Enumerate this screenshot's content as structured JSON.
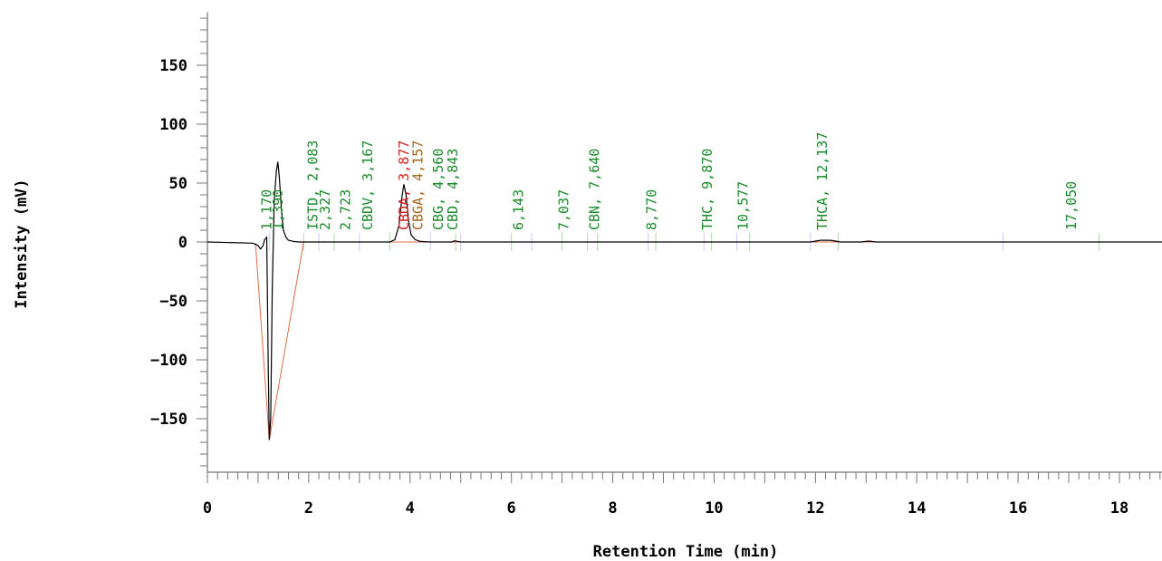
{
  "chart_data": {
    "type": "line",
    "title": "",
    "xlabel": "Retention Time (min)",
    "ylabel": "Intensity (mV)",
    "xlim": [
      0,
      18.9
    ],
    "ylim": [
      -195,
      195
    ],
    "x_ticks": [
      0,
      2,
      4,
      6,
      8,
      10,
      12,
      14,
      16,
      18
    ],
    "y_ticks": [
      150,
      100,
      50,
      0,
      -50,
      -100,
      -150
    ],
    "grid": false,
    "colors": {
      "signal": "#000000",
      "baseline": "#e06a4c",
      "label_green": "#1a8a2a",
      "label_red": "#d62020",
      "label_brown": "#a86418"
    },
    "signal": {
      "x": [
        0,
        0.9,
        1.0,
        1.05,
        1.1,
        1.13,
        1.17,
        1.2,
        1.22,
        1.25,
        1.28,
        1.32,
        1.36,
        1.39,
        1.42,
        1.46,
        1.5,
        1.55,
        1.6,
        1.7,
        1.8,
        2.0,
        3.0,
        3.6,
        3.7,
        3.78,
        3.84,
        3.877,
        3.92,
        3.97,
        4.02,
        4.1,
        4.2,
        4.4,
        4.83,
        4.87,
        5.0,
        11.9,
        12.1,
        12.3,
        12.5,
        12.9,
        13.05,
        13.2,
        18.9
      ],
      "y": [
        0,
        -1,
        -3,
        -6,
        -3,
        2,
        4,
        -100,
        -168,
        -150,
        -40,
        35,
        60,
        68,
        55,
        28,
        10,
        4,
        1.5,
        0.5,
        0,
        0,
        0,
        0,
        2,
        14,
        38,
        49,
        40,
        18,
        6,
        2,
        0.5,
        0,
        0,
        1,
        0,
        0,
        1.5,
        1.5,
        0,
        0,
        0.8,
        0,
        0
      ]
    },
    "baseline": {
      "x": [
        0.95,
        1.22,
        1.9,
        18.9
      ],
      "y": [
        -1,
        -168,
        0,
        0
      ]
    },
    "peak_labels": [
      {
        "text": "1,170",
        "x": 1.17,
        "color": "green"
      },
      {
        "text": "1,390",
        "x": 1.39,
        "color": "green"
      },
      {
        "text": "ISTD, 2,083",
        "x": 2.083,
        "color": "green"
      },
      {
        "text": "2,327",
        "x": 2.327,
        "color": "green"
      },
      {
        "text": "2,723",
        "x": 2.723,
        "color": "green"
      },
      {
        "text": "CBDV, 3,167",
        "x": 3.167,
        "color": "green"
      },
      {
        "text": "CBDA, 3,877",
        "x": 3.877,
        "color": "red"
      },
      {
        "text": "CBGA, 4,157",
        "x": 4.157,
        "color": "brown"
      },
      {
        "text": "CBG, 4,560",
        "x": 4.56,
        "color": "green"
      },
      {
        "text": "CBD, 4,843",
        "x": 4.843,
        "color": "green"
      },
      {
        "text": "6,143",
        "x": 6.143,
        "color": "green"
      },
      {
        "text": "7,037",
        "x": 7.037,
        "color": "green"
      },
      {
        "text": "CBN, 7,640",
        "x": 7.64,
        "color": "green"
      },
      {
        "text": "8,770",
        "x": 8.77,
        "color": "green"
      },
      {
        "text": "THC, 9,870",
        "x": 9.87,
        "color": "green"
      },
      {
        "text": "10,577",
        "x": 10.577,
        "color": "green"
      },
      {
        "text": "THCA, 12,137",
        "x": 12.137,
        "color": "green"
      },
      {
        "text": "17,050",
        "x": 17.05,
        "color": "green"
      }
    ]
  }
}
